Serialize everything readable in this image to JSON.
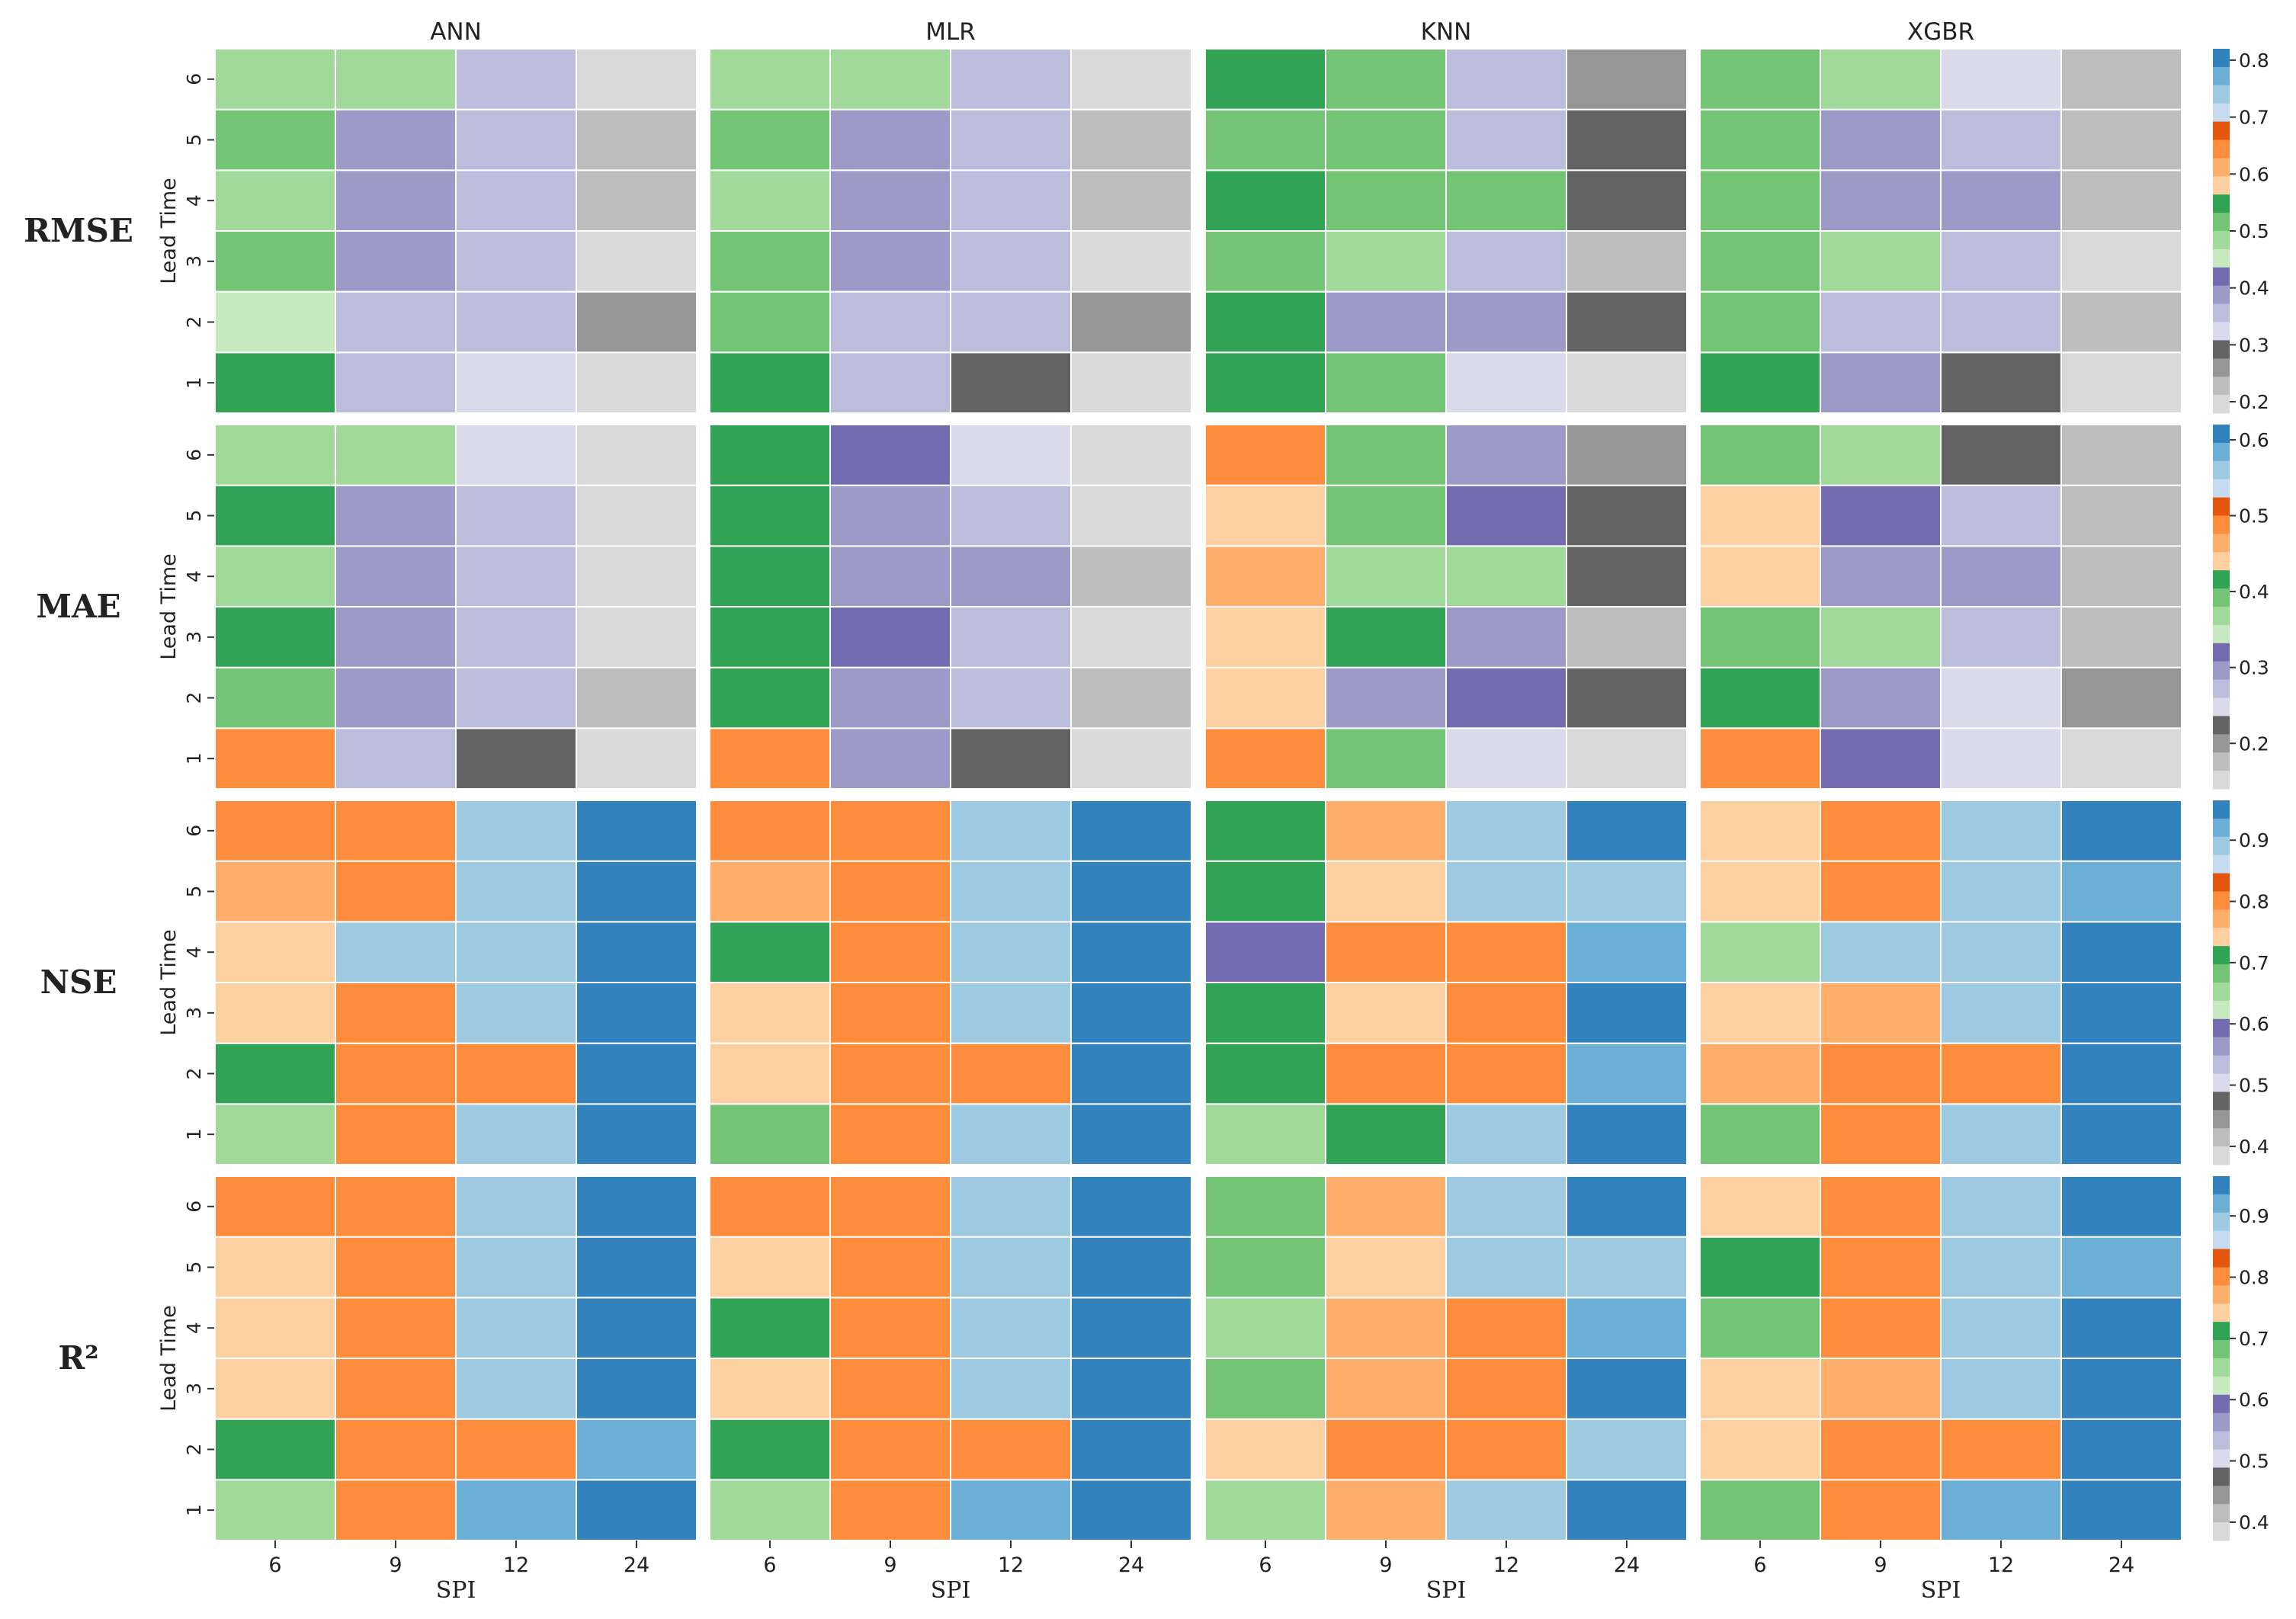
{
  "chart_data": {
    "type": "heatmap",
    "models": [
      "ANN",
      "MLR",
      "KNN",
      "XGBR"
    ],
    "xlabel": "SPI",
    "ylabel": "Lead Time",
    "x_categories": [
      "6",
      "9",
      "12",
      "24"
    ],
    "y_categories": [
      "1",
      "2",
      "3",
      "4",
      "5",
      "6"
    ],
    "metrics": [
      {
        "name": "RMSE",
        "colorbar_ticks": [
          0.2,
          0.3,
          0.4,
          0.5,
          0.6,
          0.7,
          0.8
        ],
        "colorbar_range": [
          0.18,
          0.82
        ],
        "grids": {
          "ANN": [
            [
              0.56,
              0.37,
              0.31,
              0.2
            ],
            [
              0.46,
              0.37,
              0.37,
              0.27
            ],
            [
              0.5,
              0.4,
              0.34,
              0.21
            ],
            [
              0.48,
              0.4,
              0.37,
              0.24
            ],
            [
              0.5,
              0.4,
              0.37,
              0.24
            ],
            [
              0.48,
              0.48,
              0.34,
              0.21
            ]
          ],
          "MLR": [
            [
              0.56,
              0.37,
              0.29,
              0.2
            ],
            [
              0.52,
              0.37,
              0.37,
              0.27
            ],
            [
              0.5,
              0.4,
              0.34,
              0.21
            ],
            [
              0.48,
              0.4,
              0.37,
              0.24
            ],
            [
              0.5,
              0.4,
              0.37,
              0.24
            ],
            [
              0.48,
              0.48,
              0.34,
              0.21
            ]
          ],
          "KNN": [
            [
              0.56,
              0.5,
              0.31,
              0.2
            ],
            [
              0.54,
              0.4,
              0.4,
              0.29
            ],
            [
              0.52,
              0.48,
              0.37,
              0.24
            ],
            [
              0.56,
              0.5,
              0.5,
              0.29
            ],
            [
              0.52,
              0.52,
              0.37,
              0.29
            ],
            [
              0.54,
              0.5,
              0.37,
              0.27
            ]
          ],
          "XGBR": [
            [
              0.54,
              0.4,
              0.29,
              0.2
            ],
            [
              0.5,
              0.34,
              0.37,
              0.24
            ],
            [
              0.5,
              0.48,
              0.37,
              0.21
            ],
            [
              0.52,
              0.4,
              0.4,
              0.24
            ],
            [
              0.52,
              0.4,
              0.34,
              0.24
            ],
            [
              0.52,
              0.48,
              0.31,
              0.24
            ]
          ]
        }
      },
      {
        "name": "MAE",
        "colorbar_ticks": [
          0.2,
          0.3,
          0.4,
          0.5,
          0.6
        ],
        "colorbar_range": [
          0.14,
          0.62
        ],
        "grids": {
          "ANN": [
            [
              0.48,
              0.28,
              0.22,
              0.16
            ],
            [
              0.4,
              0.3,
              0.28,
              0.18
            ],
            [
              0.42,
              0.3,
              0.28,
              0.16
            ],
            [
              0.38,
              0.3,
              0.28,
              0.16
            ],
            [
              0.42,
              0.3,
              0.28,
              0.16
            ],
            [
              0.38,
              0.38,
              0.26,
              0.16
            ]
          ],
          "MLR": [
            [
              0.48,
              0.3,
              0.22,
              0.16
            ],
            [
              0.42,
              0.3,
              0.28,
              0.18
            ],
            [
              0.42,
              0.32,
              0.28,
              0.16
            ],
            [
              0.42,
              0.3,
              0.3,
              0.18
            ],
            [
              0.42,
              0.3,
              0.28,
              0.16
            ],
            [
              0.42,
              0.32,
              0.26,
              0.16
            ]
          ],
          "KNN": [
            [
              0.48,
              0.4,
              0.26,
              0.16
            ],
            [
              0.44,
              0.3,
              0.32,
              0.22
            ],
            [
              0.44,
              0.42,
              0.3,
              0.18
            ],
            [
              0.46,
              0.38,
              0.38,
              0.22
            ],
            [
              0.44,
              0.4,
              0.32,
              0.22
            ],
            [
              0.48,
              0.4,
              0.3,
              0.2
            ]
          ],
          "XGBR": [
            [
              0.48,
              0.32,
              0.26,
              0.16
            ],
            [
              0.42,
              0.3,
              0.26,
              0.2
            ],
            [
              0.4,
              0.38,
              0.28,
              0.18
            ],
            [
              0.44,
              0.3,
              0.3,
              0.18
            ],
            [
              0.44,
              0.32,
              0.28,
              0.18
            ],
            [
              0.4,
              0.38,
              0.22,
              0.18
            ]
          ]
        }
      },
      {
        "name": "NSE",
        "colorbar_ticks": [
          0.4,
          0.5,
          0.6,
          0.7,
          0.8,
          0.9
        ],
        "colorbar_range": [
          0.37,
          0.965
        ],
        "grids": {
          "ANN": [
            [
              0.66,
              0.79,
              0.88,
              0.95
            ],
            [
              0.7,
              0.81,
              0.81,
              0.95
            ],
            [
              0.75,
              0.79,
              0.9,
              0.95
            ],
            [
              0.75,
              0.9,
              0.9,
              0.95
            ],
            [
              0.77,
              0.81,
              0.9,
              0.95
            ],
            [
              0.79,
              0.79,
              0.88,
              0.95
            ]
          ],
          "MLR": [
            [
              0.68,
              0.79,
              0.88,
              0.95
            ],
            [
              0.75,
              0.81,
              0.81,
              0.95
            ],
            [
              0.75,
              0.79,
              0.9,
              0.95
            ],
            [
              0.7,
              0.81,
              0.9,
              0.95
            ],
            [
              0.77,
              0.81,
              0.9,
              0.95
            ],
            [
              0.79,
              0.79,
              0.88,
              0.95
            ]
          ],
          "KNN": [
            [
              0.66,
              0.7,
              0.88,
              0.95
            ],
            [
              0.7,
              0.79,
              0.81,
              0.93
            ],
            [
              0.7,
              0.75,
              0.81,
              0.95
            ],
            [
              0.58,
              0.79,
              0.79,
              0.93
            ],
            [
              0.7,
              0.75,
              0.9,
              0.88
            ],
            [
              0.7,
              0.77,
              0.9,
              0.95
            ]
          ],
          "XGBR": [
            [
              0.68,
              0.79,
              0.88,
              0.95
            ],
            [
              0.77,
              0.81,
              0.81,
              0.95
            ],
            [
              0.75,
              0.77,
              0.9,
              0.95
            ],
            [
              0.66,
              0.9,
              0.9,
              0.95
            ],
            [
              0.75,
              0.81,
              0.88,
              0.93
            ],
            [
              0.75,
              0.81,
              0.88,
              0.95
            ]
          ]
        }
      },
      {
        "name": "R²",
        "colorbar_ticks": [
          0.4,
          0.5,
          0.6,
          0.7,
          0.8,
          0.9
        ],
        "colorbar_range": [
          0.37,
          0.965
        ],
        "grids": {
          "ANN": [
            [
              0.66,
              0.79,
              0.92,
              0.95
            ],
            [
              0.7,
              0.81,
              0.81,
              0.92
            ],
            [
              0.75,
              0.79,
              0.9,
              0.95
            ],
            [
              0.75,
              0.81,
              0.9,
              0.95
            ],
            [
              0.75,
              0.79,
              0.9,
              0.95
            ],
            [
              0.79,
              0.79,
              0.88,
              0.95
            ]
          ],
          "MLR": [
            [
              0.66,
              0.81,
              0.92,
              0.95
            ],
            [
              0.7,
              0.81,
              0.81,
              0.95
            ],
            [
              0.75,
              0.79,
              0.9,
              0.95
            ],
            [
              0.7,
              0.81,
              0.9,
              0.95
            ],
            [
              0.75,
              0.81,
              0.9,
              0.95
            ],
            [
              0.79,
              0.79,
              0.88,
              0.95
            ]
          ],
          "KNN": [
            [
              0.66,
              0.77,
              0.88,
              0.95
            ],
            [
              0.75,
              0.79,
              0.79,
              0.88
            ],
            [
              0.68,
              0.77,
              0.81,
              0.95
            ],
            [
              0.64,
              0.77,
              0.79,
              0.92
            ],
            [
              0.68,
              0.75,
              0.88,
              0.88
            ],
            [
              0.68,
              0.77,
              0.9,
              0.95
            ]
          ],
          "XGBR": [
            [
              0.68,
              0.79,
              0.92,
              0.95
            ],
            [
              0.75,
              0.81,
              0.81,
              0.95
            ],
            [
              0.75,
              0.77,
              0.9,
              0.95
            ],
            [
              0.68,
              0.81,
              0.9,
              0.95
            ],
            [
              0.7,
              0.79,
              0.88,
              0.92
            ],
            [
              0.75,
              0.81,
              0.88,
              0.95
            ]
          ]
        }
      }
    ],
    "colormap": {
      "name": "tab20c",
      "colors": [
        "#3182bd",
        "#6baed6",
        "#9ecae1",
        "#c6dbef",
        "#e6550d",
        "#fd8d3c",
        "#fdae6b",
        "#fdd0a2",
        "#31a354",
        "#74c476",
        "#a1d99b",
        "#c7e9c0",
        "#756bb1",
        "#9e9ac8",
        "#bcbddc",
        "#dadaeb",
        "#636363",
        "#969696",
        "#bdbdbd",
        "#d9d9d9"
      ]
    }
  }
}
